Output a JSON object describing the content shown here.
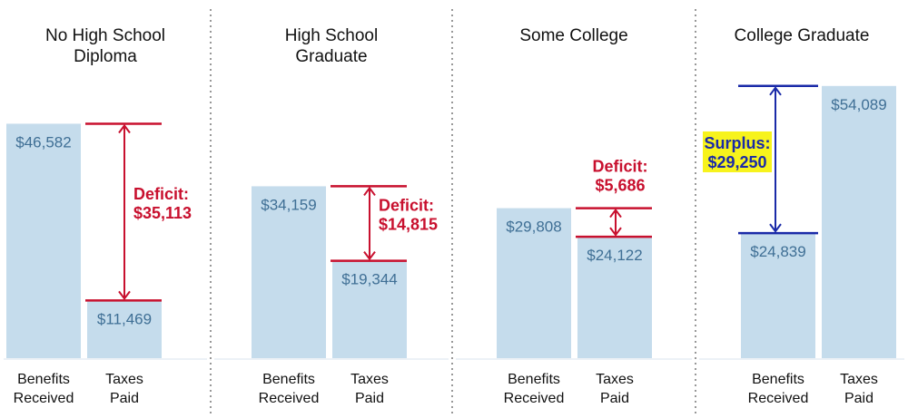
{
  "chart_data": {
    "type": "bar",
    "ylim": [
      0,
      60000
    ],
    "colors": {
      "bar": "#c5dcec",
      "deficit": "#c8102e",
      "surplus": "#1a2aa8",
      "highlight": "#f7f31c",
      "divider": "#555555",
      "value_text": "#3f6f95"
    },
    "categories": [
      "Benefits Received",
      "Taxes Paid"
    ],
    "axis_labels": [
      {
        "line1": "Benefits",
        "line2": "Received"
      },
      {
        "line1": "Taxes",
        "line2": "Paid"
      }
    ],
    "panels": [
      {
        "title": [
          "No High School",
          "Diploma"
        ],
        "values": [
          46582,
          11469
        ],
        "value_labels": [
          "$46,582",
          "$11,469"
        ],
        "annotation": {
          "kind": "deficit",
          "label": "Deficit:",
          "amount": "$35,113",
          "value": 35113
        }
      },
      {
        "title": [
          "High School",
          "Graduate"
        ],
        "values": [
          34159,
          19344
        ],
        "value_labels": [
          "$34,159",
          "$19,344"
        ],
        "annotation": {
          "kind": "deficit",
          "label": "Deficit:",
          "amount": "$14,815",
          "value": 14815
        }
      },
      {
        "title": [
          "Some College"
        ],
        "values": [
          29808,
          24122
        ],
        "value_labels": [
          "$29,808",
          "$24,122"
        ],
        "annotation": {
          "kind": "deficit",
          "label": "Deficit:",
          "amount": "$5,686",
          "value": 5686
        }
      },
      {
        "title": [
          "College Graduate"
        ],
        "values": [
          24839,
          54089
        ],
        "value_labels": [
          "$24,839",
          "$54,089"
        ],
        "annotation": {
          "kind": "surplus",
          "label": "Surplus:",
          "amount": "$29,250",
          "value": 29250
        }
      }
    ]
  }
}
